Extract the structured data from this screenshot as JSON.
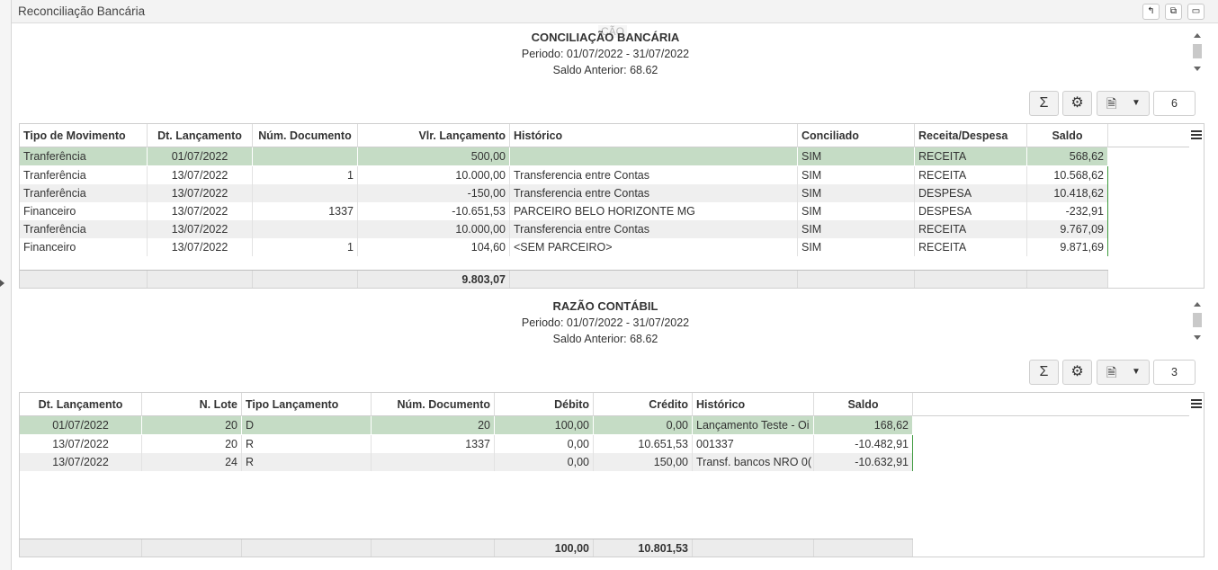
{
  "window": {
    "title": "Reconciliação Bancária",
    "watermark": "CÃO",
    "buttons": [
      "restore",
      "popout",
      "maximize"
    ]
  },
  "conciliacao": {
    "title": "CONCILIAÇÃO BANCÁRIA",
    "periodo": "Periodo: 01/07/2022 - 31/07/2022",
    "saldo_anterior": "Saldo Anterior: 68.62",
    "toolbar": {
      "sum_icon": "Σ",
      "settings_icon": "gear",
      "export_icon": "export-file",
      "dropdown_icon": "caret-down",
      "count": "6"
    },
    "columns": [
      "Tipo de Movimento",
      "Dt. Lançamento",
      "Núm. Documento",
      "Vlr. Lançamento",
      "Histórico",
      "Conciliado",
      "Receita/Despesa",
      "Saldo"
    ],
    "rows": [
      [
        "Tranferência",
        "01/07/2022",
        "",
        "500,00",
        "",
        "SIM",
        "RECEITA",
        "568,62"
      ],
      [
        "Tranferência",
        "13/07/2022",
        "1",
        "10.000,00",
        "Transferencia entre Contas",
        "SIM",
        "RECEITA",
        "10.568,62"
      ],
      [
        "Tranferência",
        "13/07/2022",
        "",
        "-150,00",
        "Transferencia entre Contas",
        "SIM",
        "DESPESA",
        "10.418,62"
      ],
      [
        "Financeiro",
        "13/07/2022",
        "1337",
        "-10.651,53",
        "PARCEIRO BELO HORIZONTE MG",
        "SIM",
        "DESPESA",
        "-232,91"
      ],
      [
        "Tranferência",
        "13/07/2022",
        "",
        "10.000,00",
        "Transferencia entre Contas",
        "SIM",
        "RECEITA",
        "9.767,09"
      ],
      [
        "Financeiro",
        "13/07/2022",
        "1",
        "104,60",
        "<SEM PARCEIRO>",
        "SIM",
        "RECEITA",
        "9.871,69"
      ]
    ],
    "total": "9.803,07"
  },
  "razao": {
    "title": "RAZÃO CONTÁBIL",
    "periodo": "Periodo: 01/07/2022 - 31/07/2022",
    "saldo_anterior": "Saldo Anterior: 68.62",
    "toolbar": {
      "sum_icon": "Σ",
      "settings_icon": "gear",
      "export_icon": "export-file",
      "dropdown_icon": "caret-down",
      "count": "3"
    },
    "columns": [
      "Dt. Lançamento",
      "N. Lote",
      "Tipo Lançamento",
      "Núm. Documento",
      "Débito",
      "Crédito",
      "Histórico",
      "Saldo"
    ],
    "rows": [
      [
        "01/07/2022",
        "20",
        "D",
        "20",
        "100,00",
        "0,00",
        "Lançamento Teste - Oi",
        "168,62"
      ],
      [
        "13/07/2022",
        "20",
        "R",
        "1337",
        "0,00",
        "10.651,53",
        "001337",
        "-10.482,91"
      ],
      [
        "13/07/2022",
        "24",
        "R",
        "",
        "0,00",
        "150,00",
        "Transf. bancos NRO 0(",
        "-10.632,91"
      ]
    ],
    "total_debito": "100,00",
    "total_credito": "10.801,53"
  }
}
